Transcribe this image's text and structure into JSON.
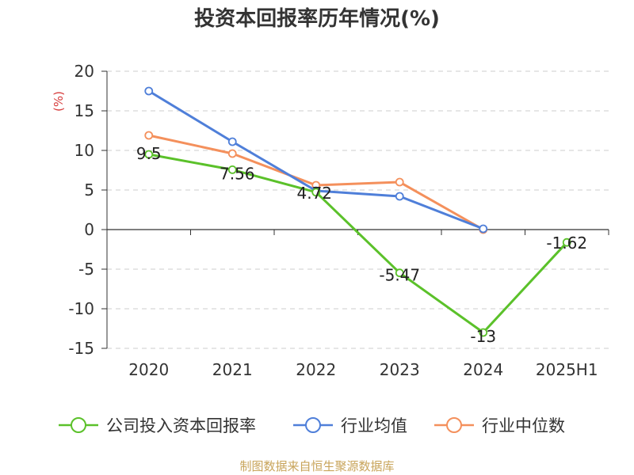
{
  "chart_data": {
    "type": "line",
    "title": "投资本回报率历年情况(%)",
    "ylabel": "(%)",
    "xlabel": "",
    "categories": [
      "2020",
      "2021",
      "2022",
      "2023",
      "2024",
      "2025H1"
    ],
    "ylim": [
      -15,
      20
    ],
    "yticks": [
      20,
      15,
      10,
      5,
      0,
      -5,
      -10,
      -15
    ],
    "grid": true,
    "legend_position": "bottom",
    "series": [
      {
        "name": "公司投入资本回报率",
        "color": "#5bc12a",
        "values": [
          9.5,
          7.56,
          4.72,
          -5.47,
          -13,
          -1.62
        ],
        "labels": [
          "9.5",
          "7.56",
          "4.72",
          "-5.47",
          "-13",
          "-1.62"
        ]
      },
      {
        "name": "行业均值",
        "color": "#4f7fd9",
        "values": [
          17.5,
          11.1,
          4.9,
          4.2,
          0.1,
          null
        ]
      },
      {
        "name": "行业中位数",
        "color": "#f4905c",
        "values": [
          11.9,
          9.6,
          5.6,
          6.0,
          0.0,
          null
        ]
      }
    ]
  },
  "source": {
    "text": "制图数据来自恒生聚源数据库",
    "color": "#c8a45a"
  },
  "colors": {
    "unit_label": "#d63a3a",
    "grid": "#cccccc",
    "axis": "#333333"
  }
}
